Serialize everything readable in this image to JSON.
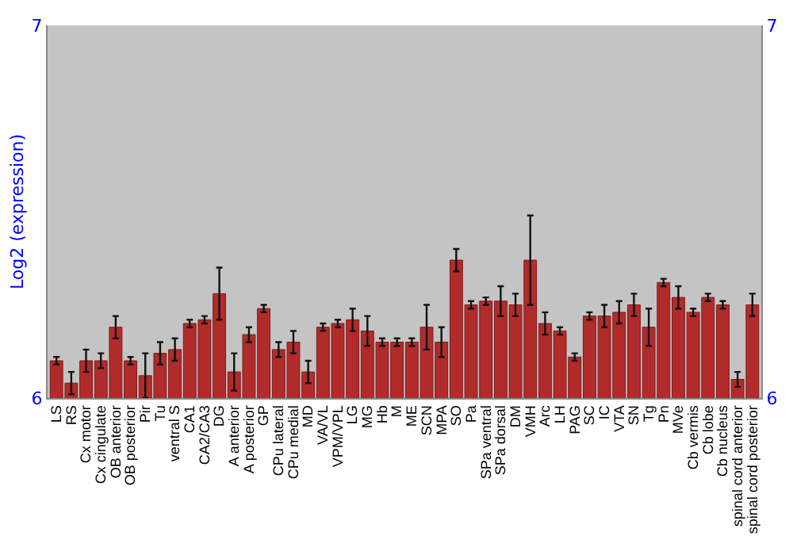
{
  "chart_data": {
    "type": "bar",
    "ylabel": "Log2 (expression)",
    "categories": [
      "LS",
      "RS",
      "Cx motor",
      "Cx cingulate",
      "OB anterior",
      "OB posterior",
      "Pir",
      "Tu",
      "ventral S",
      "CA1",
      "CA2/CA3",
      "DG",
      "A anterior",
      "A posterior",
      "GP",
      "CPu lateral",
      "CPu medial",
      "MD",
      "VA/VL",
      "VPM/VPL",
      "LG",
      "MG",
      "Hb",
      "M",
      "ME",
      "SCN",
      "MPA",
      "SO",
      "Pa",
      "SPa ventral",
      "SPa dorsal",
      "DM",
      "VMH",
      "Arc",
      "LH",
      "PAG",
      "SC",
      "IC",
      "VTA",
      "SN",
      "Tg",
      "Pn",
      "MVe",
      "Cb vermis",
      "Cb lobe",
      "Cb nucleus",
      "spinal cord anterior",
      "spinal cord posterior"
    ],
    "values": [
      6.1,
      6.04,
      6.1,
      6.1,
      6.19,
      6.1,
      6.06,
      6.12,
      6.13,
      6.2,
      6.21,
      6.28,
      6.07,
      6.17,
      6.24,
      6.13,
      6.15,
      6.07,
      6.19,
      6.2,
      6.21,
      6.18,
      6.15,
      6.15,
      6.15,
      6.19,
      6.15,
      6.37,
      6.25,
      6.26,
      6.26,
      6.25,
      6.37,
      6.2,
      6.18,
      6.11,
      6.22,
      6.22,
      6.23,
      6.25,
      6.19,
      6.31,
      6.27,
      6.23,
      6.27,
      6.25,
      6.05,
      6.25
    ],
    "errors": [
      0.01,
      0.03,
      0.03,
      0.02,
      0.03,
      0.01,
      0.06,
      0.03,
      0.03,
      0.01,
      0.01,
      0.07,
      0.05,
      0.02,
      0.01,
      0.02,
      0.03,
      0.03,
      0.01,
      0.01,
      0.03,
      0.04,
      0.01,
      0.01,
      0.01,
      0.06,
      0.04,
      0.03,
      0.01,
      0.01,
      0.04,
      0.03,
      0.12,
      0.03,
      0.01,
      0.01,
      0.01,
      0.03,
      0.03,
      0.03,
      0.05,
      0.01,
      0.03,
      0.01,
      0.01,
      0.01,
      0.02,
      0.03
    ],
    "color": "#b22b2b",
    "ylim": [
      6,
      7
    ],
    "yticks": [
      6,
      7
    ],
    "y2lim": [
      6,
      7
    ],
    "y2ticks": [
      6,
      7
    ],
    "grid": false
  }
}
